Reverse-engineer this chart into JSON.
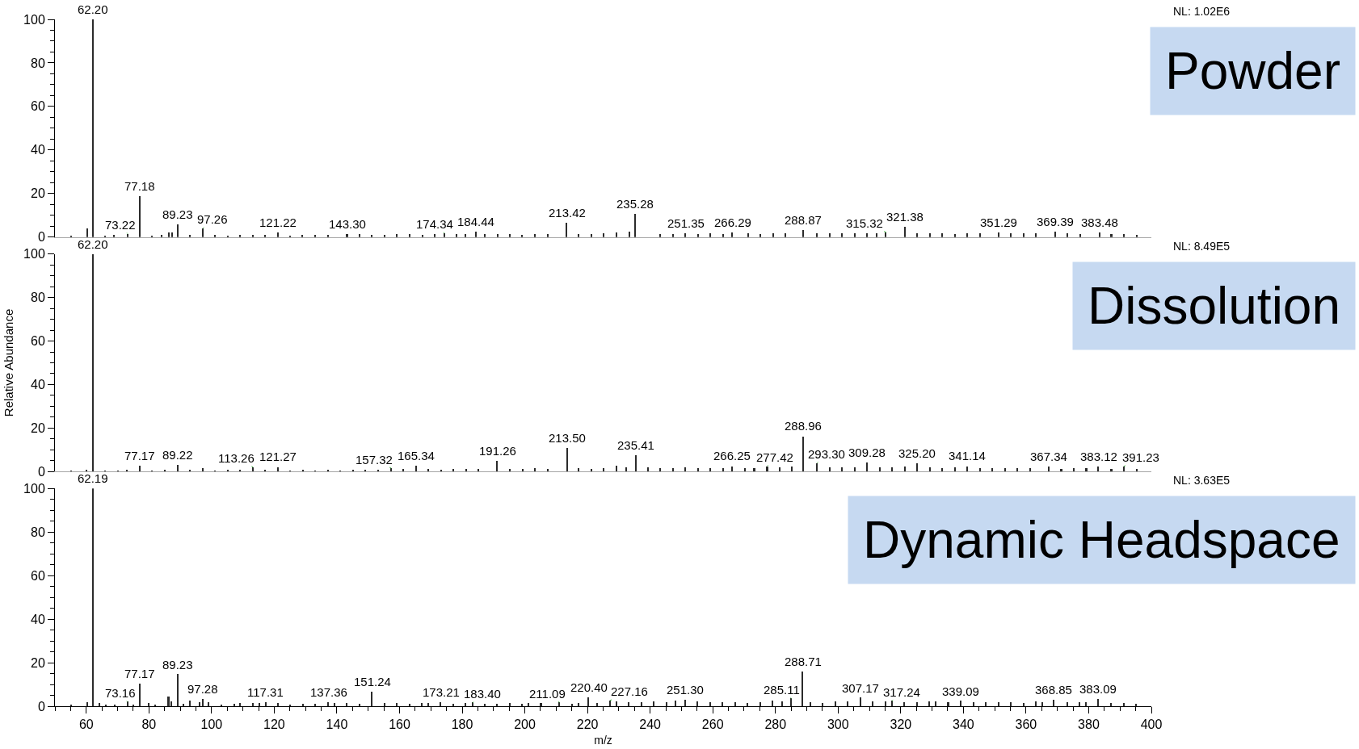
{
  "chart_data": [
    {
      "type": "bar",
      "title": "Powder",
      "color": "#2b2b2b",
      "xlim": [
        50,
        400
      ],
      "ylim": [
        0,
        100
      ],
      "tick_labels": "y",
      "yticks": [
        0,
        {
          "value": 5,
          "label": null
        },
        {
          "value": 10,
          "label": null
        },
        {
          "value": 15,
          "label": null
        },
        20,
        {
          "value": 25,
          "label": null
        },
        {
          "value": 30,
          "label": null
        },
        {
          "value": 35,
          "label": null
        },
        40,
        {
          "value": 45,
          "label": null
        },
        {
          "value": 50,
          "label": null
        },
        {
          "value": 55,
          "label": null
        },
        60,
        {
          "value": 65,
          "label": null
        },
        {
          "value": 70,
          "label": null
        },
        {
          "value": 75,
          "label": null
        },
        80,
        {
          "value": 85,
          "label": null
        },
        {
          "value": 90,
          "label": null
        },
        {
          "value": 95,
          "label": null
        },
        100
      ],
      "x": [
        55.1,
        60.4,
        62.2,
        66.1,
        69.0,
        73.22,
        77.18,
        81.0,
        84.1,
        86.4,
        87.5,
        89.23,
        93.1,
        97.26,
        101.1,
        105.2,
        109.1,
        113.2,
        117.1,
        121.22,
        125.2,
        129.1,
        133.2,
        137.2,
        143.3,
        147.2,
        151.2,
        155.2,
        159.2,
        163.2,
        167.3,
        171.2,
        174.34,
        178.3,
        181.2,
        184.44,
        187.3,
        191.3,
        195.3,
        199.2,
        203.3,
        207.3,
        213.42,
        217.3,
        221.3,
        225.3,
        229.3,
        233.5,
        235.28,
        243.3,
        247.3,
        251.35,
        255.3,
        259.3,
        263.3,
        266.29,
        271.3,
        275.3,
        279.3,
        283.3,
        288.87,
        293.3,
        297.3,
        301.3,
        305.3,
        309.3,
        312.3,
        315.32,
        321.38,
        325.3,
        329.3,
        333.3,
        337.3,
        341.3,
        345.3,
        351.29,
        355.3,
        359.3,
        363.3,
        369.39,
        373.3,
        377.3,
        383.48,
        387.3,
        391.3,
        395.3
      ],
      "values": [
        0.6,
        3.8,
        100,
        0.8,
        0.9,
        1.5,
        18.7,
        0.8,
        1.0,
        2.0,
        2.2,
        5.8,
        0.9,
        4.0,
        1.0,
        0.8,
        1.1,
        0.9,
        1.0,
        2.0,
        0.8,
        0.9,
        1.0,
        0.9,
        1.5,
        1.2,
        1.0,
        1.1,
        1.3,
        1.2,
        1.1,
        1.4,
        1.8,
        1.2,
        1.5,
        2.6,
        1.3,
        1.2,
        1.4,
        1.1,
        1.3,
        1.2,
        6.6,
        1.2,
        1.4,
        1.6,
        2.0,
        2.6,
        10.5,
        1.4,
        1.5,
        1.8,
        1.4,
        1.6,
        1.5,
        2.0,
        1.6,
        1.5,
        1.7,
        1.8,
        3.2,
        1.8,
        1.6,
        1.7,
        1.8,
        1.9,
        1.6,
        2.2,
        4.8,
        1.7,
        1.6,
        1.8,
        1.5,
        1.7,
        1.6,
        2.0,
        1.7,
        1.6,
        1.8,
        2.4,
        1.6,
        1.5,
        2.2,
        1.4,
        1.2,
        1.1
      ],
      "annotations": [
        "NL: 1.02E6",
        {
          "text": "62.20",
          "x": 62.2,
          "y": 100
        },
        {
          "text": "73.22",
          "x": 73.22,
          "y": 1.5
        },
        {
          "text": "77.18",
          "x": 77.18,
          "y": 18.7
        },
        {
          "text": "89.23",
          "x": 89.23,
          "y": 5.8
        },
        {
          "text": "97.26",
          "x": 97.26,
          "y": 4.0
        },
        {
          "text": "121.22",
          "x": 121.22,
          "y": 2.0
        },
        {
          "text": "143.30",
          "x": 143.3,
          "y": 1.5
        },
        {
          "text": "174.34",
          "x": 174.34,
          "y": 1.8
        },
        {
          "text": "184.44",
          "x": 184.44,
          "y": 2.6
        },
        {
          "text": "213.42",
          "x": 213.42,
          "y": 6.6
        },
        {
          "text": "235.28",
          "x": 235.28,
          "y": 10.5
        },
        {
          "text": "251.35",
          "x": 251.35,
          "y": 1.8
        },
        {
          "text": "266.29",
          "x": 266.29,
          "y": 2.0
        },
        {
          "text": "288.87",
          "x": 288.87,
          "y": 3.2
        },
        {
          "text": "315.32",
          "x": 315.32,
          "y": 2.2
        },
        {
          "text": "321.38",
          "x": 321.38,
          "y": 4.8
        },
        {
          "text": "351.29",
          "x": 351.29,
          "y": 2.0
        },
        {
          "text": "369.39",
          "x": 369.39,
          "y": 2.4
        },
        {
          "text": "383.48",
          "x": 383.48,
          "y": 2.2
        }
      ]
    },
    {
      "type": "bar",
      "title": "Dissolution",
      "ylabel": "Relative Abundance",
      "color": "#2b2b2b",
      "xlim": [
        50,
        400
      ],
      "ylim": [
        0,
        100
      ],
      "tick_labels": "y",
      "yticks": [
        0,
        {
          "value": 5,
          "label": null
        },
        {
          "value": 10,
          "label": null
        },
        {
          "value": 15,
          "label": null
        },
        20,
        {
          "value": 25,
          "label": null
        },
        {
          "value": 30,
          "label": null
        },
        {
          "value": 35,
          "label": null
        },
        40,
        {
          "value": 45,
          "label": null
        },
        {
          "value": 50,
          "label": null
        },
        {
          "value": 55,
          "label": null
        },
        60,
        {
          "value": 65,
          "label": null
        },
        {
          "value": 70,
          "label": null
        },
        {
          "value": 75,
          "label": null
        },
        80,
        {
          "value": 85,
          "label": null
        },
        {
          "value": 90,
          "label": null
        },
        {
          "value": 95,
          "label": null
        },
        100
      ],
      "x": [
        55.1,
        60.2,
        62.2,
        66.1,
        70.1,
        73.1,
        77.17,
        81.1,
        85.1,
        89.22,
        93.1,
        97.3,
        101.1,
        105.2,
        109.1,
        113.26,
        117.2,
        121.27,
        125.2,
        129.2,
        133.2,
        137.2,
        141.2,
        145.2,
        149.2,
        153.2,
        157.32,
        161.2,
        165.34,
        169.3,
        173.3,
        177.3,
        181.3,
        185.3,
        191.26,
        195.3,
        199.3,
        203.3,
        207.3,
        213.5,
        217.3,
        221.3,
        225.3,
        229.4,
        232.3,
        235.41,
        239.3,
        243.3,
        247.3,
        251.3,
        255.3,
        259.3,
        263.3,
        266.25,
        270.3,
        273.3,
        277.42,
        281.3,
        285.3,
        288.96,
        293.3,
        297.3,
        301.3,
        305.3,
        309.28,
        313.3,
        317.3,
        321.3,
        325.2,
        329.3,
        333.3,
        337.3,
        341.14,
        345.3,
        349.3,
        353.3,
        357.3,
        361.3,
        367.34,
        371.3,
        375.3,
        379.3,
        383.12,
        387.3,
        391.23,
        395.3
      ],
      "values": [
        0.5,
        1.0,
        100,
        0.6,
        0.8,
        0.9,
        2.8,
        0.7,
        1.0,
        3.2,
        0.9,
        1.6,
        0.8,
        0.9,
        1.0,
        2.0,
        0.9,
        2.2,
        0.8,
        0.9,
        0.8,
        0.9,
        0.8,
        1.0,
        0.9,
        1.1,
        1.6,
        1.2,
        2.8,
        1.3,
        1.1,
        1.2,
        1.4,
        1.3,
        5.0,
        1.3,
        1.4,
        1.6,
        1.5,
        10.9,
        1.6,
        1.5,
        1.9,
        2.8,
        2.0,
        7.6,
        2.2,
        1.7,
        1.8,
        2.0,
        1.8,
        1.9,
        1.7,
        2.6,
        1.9,
        1.8,
        2.6,
        2.0,
        2.3,
        16.3,
        4.0,
        2.0,
        2.2,
        2.1,
        4.2,
        2.2,
        2.0,
        2.3,
        4.0,
        2.1,
        1.9,
        2.0,
        2.6,
        1.8,
        1.9,
        1.7,
        1.8,
        1.6,
        2.4,
        1.5,
        1.7,
        1.6,
        2.4,
        1.5,
        2.4,
        1.3
      ],
      "annotations": [
        "NL: 8.49E5",
        {
          "text": "62.20",
          "x": 62.2,
          "y": 100
        },
        {
          "text": "77.17",
          "x": 77.17,
          "y": 2.8
        },
        {
          "text": "89.22",
          "x": 89.22,
          "y": 3.2
        },
        {
          "text": "113.26",
          "x": 113.26,
          "y": 2.0
        },
        {
          "text": "121.27",
          "x": 121.27,
          "y": 2.2
        },
        {
          "text": "157.32",
          "x": 157.32,
          "y": 1.6
        },
        {
          "text": "165.34",
          "x": 165.34,
          "y": 2.8
        },
        {
          "text": "191.26",
          "x": 191.26,
          "y": 5.0
        },
        {
          "text": "213.50",
          "x": 213.5,
          "y": 10.9
        },
        {
          "text": "235.41",
          "x": 235.41,
          "y": 7.6
        },
        {
          "text": "266.25",
          "x": 266.25,
          "y": 2.6
        },
        {
          "text": "277.42",
          "x": 277.42,
          "y": 2.6
        },
        {
          "text": "288.96",
          "x": 288.96,
          "y": 16.3
        },
        {
          "text": "293.30",
          "x": 293.3,
          "y": 4.0
        },
        {
          "text": "309.28",
          "x": 309.28,
          "y": 4.2
        },
        {
          "text": "325.20",
          "x": 325.2,
          "y": 4.0
        },
        {
          "text": "341.14",
          "x": 341.14,
          "y": 2.6
        },
        {
          "text": "367.34",
          "x": 367.34,
          "y": 2.4
        },
        {
          "text": "383.12",
          "x": 383.12,
          "y": 2.4
        },
        {
          "text": "391.23",
          "x": 391.23,
          "y": 2.4
        }
      ]
    },
    {
      "type": "bar",
      "title": "Dynamic Headspace",
      "xlabel": "m/z",
      "color": "#2b2b2b",
      "xlim": [
        50,
        400
      ],
      "ylim": [
        0,
        100
      ],
      "xticks": [
        {
          "value": 50,
          "label": null
        },
        {
          "value": 55,
          "label": null
        },
        60,
        {
          "value": 65,
          "label": null
        },
        {
          "value": 70,
          "label": null
        },
        {
          "value": 75,
          "label": null
        },
        80,
        {
          "value": 85,
          "label": null
        },
        {
          "value": 90,
          "label": null
        },
        {
          "value": 95,
          "label": null
        },
        100,
        {
          "value": 105,
          "label": null
        },
        {
          "value": 110,
          "label": null
        },
        {
          "value": 115,
          "label": null
        },
        120,
        {
          "value": 125,
          "label": null
        },
        {
          "value": 130,
          "label": null
        },
        {
          "value": 135,
          "label": null
        },
        140,
        {
          "value": 145,
          "label": null
        },
        {
          "value": 150,
          "label": null
        },
        {
          "value": 155,
          "label": null
        },
        160,
        {
          "value": 165,
          "label": null
        },
        {
          "value": 170,
          "label": null
        },
        {
          "value": 175,
          "label": null
        },
        180,
        {
          "value": 185,
          "label": null
        },
        {
          "value": 190,
          "label": null
        },
        {
          "value": 195,
          "label": null
        },
        200,
        {
          "value": 205,
          "label": null
        },
        {
          "value": 210,
          "label": null
        },
        {
          "value": 215,
          "label": null
        },
        220,
        {
          "value": 225,
          "label": null
        },
        {
          "value": 230,
          "label": null
        },
        {
          "value": 235,
          "label": null
        },
        240,
        {
          "value": 245,
          "label": null
        },
        {
          "value": 250,
          "label": null
        },
        {
          "value": 255,
          "label": null
        },
        260,
        {
          "value": 265,
          "label": null
        },
        {
          "value": 270,
          "label": null
        },
        {
          "value": 275,
          "label": null
        },
        280,
        {
          "value": 285,
          "label": null
        },
        {
          "value": 290,
          "label": null
        },
        {
          "value": 295,
          "label": null
        },
        300,
        {
          "value": 305,
          "label": null
        },
        {
          "value": 310,
          "label": null
        },
        {
          "value": 315,
          "label": null
        },
        320,
        {
          "value": 325,
          "label": null
        },
        {
          "value": 330,
          "label": null
        },
        {
          "value": 335,
          "label": null
        },
        340,
        {
          "value": 345,
          "label": null
        },
        {
          "value": 350,
          "label": null
        },
        {
          "value": 355,
          "label": null
        },
        360,
        {
          "value": 365,
          "label": null
        },
        {
          "value": 370,
          "label": null
        },
        {
          "value": 375,
          "label": null
        },
        380,
        {
          "value": 385,
          "label": null
        },
        {
          "value": 390,
          "label": null
        },
        {
          "value": 395,
          "label": null
        },
        400
      ],
      "yticks": [
        0,
        {
          "value": 5,
          "label": null
        },
        {
          "value": 10,
          "label": null
        },
        {
          "value": 15,
          "label": null
        },
        20,
        {
          "value": 25,
          "label": null
        },
        {
          "value": 30,
          "label": null
        },
        {
          "value": 35,
          "label": null
        },
        40,
        {
          "value": 45,
          "label": null
        },
        {
          "value": 50,
          "label": null
        },
        {
          "value": 55,
          "label": null
        },
        60,
        {
          "value": 65,
          "label": null
        },
        {
          "value": 70,
          "label": null
        },
        {
          "value": 75,
          "label": null
        },
        80,
        {
          "value": 85,
          "label": null
        },
        {
          "value": 90,
          "label": null
        },
        {
          "value": 95,
          "label": null
        },
        100
      ],
      "x": [
        55.2,
        60.3,
        62.19,
        64.2,
        66.2,
        69.1,
        73.16,
        75.1,
        77.17,
        80.1,
        82.1,
        86.3,
        87.3,
        89.23,
        91.1,
        93.2,
        96.2,
        97.28,
        99.0,
        103.1,
        107.2,
        109.2,
        113.2,
        115.2,
        117.31,
        121.2,
        125.2,
        129.2,
        133.2,
        137.36,
        139.2,
        143.2,
        147.2,
        151.24,
        155.2,
        159.2,
        163.2,
        167.2,
        169.2,
        173.21,
        177.2,
        181.2,
        183.4,
        187.2,
        191.2,
        195.2,
        199.2,
        201.2,
        205.2,
        211.09,
        215.2,
        217.2,
        220.4,
        223.2,
        227.16,
        229.2,
        233.2,
        237.2,
        241.2,
        245.2,
        248.2,
        251.3,
        255.2,
        259.2,
        263.2,
        267.2,
        271.2,
        275.2,
        279.2,
        282.2,
        285.11,
        288.71,
        291.2,
        295.2,
        299.2,
        303.2,
        307.17,
        311.2,
        315.2,
        317.24,
        321.2,
        325.2,
        329.2,
        331.2,
        335.2,
        339.09,
        343.2,
        347.2,
        351.2,
        355.2,
        359.2,
        363.2,
        365.2,
        368.85,
        373.2,
        377.2,
        379.2,
        383.09,
        387.2,
        391.2,
        395.2
      ],
      "values": [
        0.5,
        1.6,
        100,
        1.2,
        0.6,
        0.8,
        2.0,
        0.8,
        10.2,
        1.2,
        0.8,
        4.2,
        2.0,
        14.6,
        0.9,
        2.6,
        1.8,
        3.2,
        1.6,
        0.8,
        0.9,
        1.4,
        1.2,
        1.3,
        1.8,
        1.4,
        0.8,
        0.9,
        1.0,
        1.8,
        1.2,
        1.5,
        1.0,
        6.6,
        1.4,
        1.2,
        1.1,
        1.3,
        1.4,
        1.8,
        1.0,
        1.2,
        1.6,
        1.1,
        0.9,
        1.3,
        1.0,
        1.4,
        1.2,
        1.8,
        1.1,
        1.3,
        4.0,
        1.5,
        2.6,
        2.2,
        1.8,
        1.9,
        2.0,
        1.6,
        2.3,
        3.0,
        2.0,
        1.7,
        1.6,
        1.8,
        1.5,
        1.7,
        2.4,
        2.0,
        3.6,
        16.0,
        1.6,
        1.5,
        2.0,
        2.2,
        3.8,
        2.0,
        2.1,
        2.4,
        1.9,
        1.8,
        2.1,
        2.0,
        1.7,
        2.4,
        1.9,
        1.6,
        1.7,
        1.8,
        1.5,
        2.0,
        1.9,
        3.0,
        1.6,
        1.7,
        1.8,
        3.2,
        1.3,
        1.2,
        1.1
      ],
      "annotations": [
        "NL: 3.63E5",
        {
          "text": "62.19",
          "x": 62.19,
          "y": 100
        },
        {
          "text": "73.16",
          "x": 73.16,
          "y": 2.0
        },
        {
          "text": "77.17",
          "x": 77.17,
          "y": 10.2
        },
        {
          "text": "89.23",
          "x": 89.23,
          "y": 14.6
        },
        {
          "text": "97.28",
          "x": 97.28,
          "y": 3.2
        },
        {
          "text": "117.31",
          "x": 117.31,
          "y": 1.8
        },
        {
          "text": "137.36",
          "x": 137.36,
          "y": 1.8
        },
        {
          "text": "151.24",
          "x": 151.24,
          "y": 6.6
        },
        {
          "text": "173.21",
          "x": 173.21,
          "y": 1.8
        },
        {
          "text": "183.40",
          "x": 183.4,
          "y": 1.6
        },
        {
          "text": "211.09",
          "x": 211.09,
          "y": 1.8
        },
        {
          "text": "220.40",
          "x": 220.4,
          "y": 4.0
        },
        {
          "text": "227.16",
          "x": 227.16,
          "y": 2.6
        },
        {
          "text": "251.30",
          "x": 251.3,
          "y": 3.0
        },
        {
          "text": "285.11",
          "x": 285.11,
          "y": 3.6
        },
        {
          "text": "288.71",
          "x": 288.71,
          "y": 16.0
        },
        {
          "text": "307.17",
          "x": 307.17,
          "y": 3.8
        },
        {
          "text": "317.24",
          "x": 317.24,
          "y": 2.4
        },
        {
          "text": "339.09",
          "x": 339.09,
          "y": 2.4
        },
        {
          "text": "368.85",
          "x": 368.85,
          "y": 3.0
        },
        {
          "text": "383.09",
          "x": 383.09,
          "y": 3.2
        }
      ]
    }
  ]
}
